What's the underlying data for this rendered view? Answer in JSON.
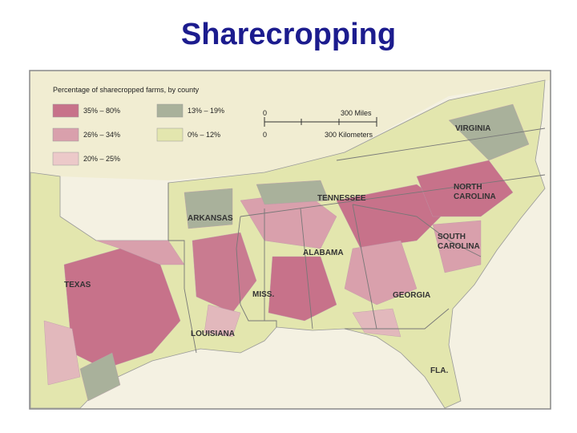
{
  "title": "Sharecropping",
  "legend": {
    "title": "Percentage of sharecropped farms, by county",
    "items": [
      {
        "label": "35% – 80%",
        "color": "#c7728a"
      },
      {
        "label": "26% – 34%",
        "color": "#d9a0ac"
      },
      {
        "label": "20% – 25%",
        "color": "#ecc9c9"
      },
      {
        "label": "13% – 19%",
        "color": "#a9b19b"
      },
      {
        "label": "0% – 12%",
        "color": "#e3e6ae"
      }
    ]
  },
  "scale": {
    "miles_start": "0",
    "miles_end": "300 Miles",
    "km_start": "0",
    "km_end": "300 Kilometers"
  },
  "states": [
    {
      "lines": [
        "VIRGINIA"
      ]
    },
    {
      "lines": [
        "NORTH",
        "CAROLINA"
      ]
    },
    {
      "lines": [
        "TENNESSEE"
      ]
    },
    {
      "lines": [
        "ARKANSAS"
      ]
    },
    {
      "lines": [
        "SOUTH",
        "CAROLINA"
      ]
    },
    {
      "lines": [
        "ALABAMA"
      ]
    },
    {
      "lines": [
        "TEXAS"
      ]
    },
    {
      "lines": [
        "MISS."
      ]
    },
    {
      "lines": [
        "GEORGIA"
      ]
    },
    {
      "lines": [
        "LOUISIANA"
      ]
    },
    {
      "lines": [
        "FLA."
      ]
    }
  ]
}
